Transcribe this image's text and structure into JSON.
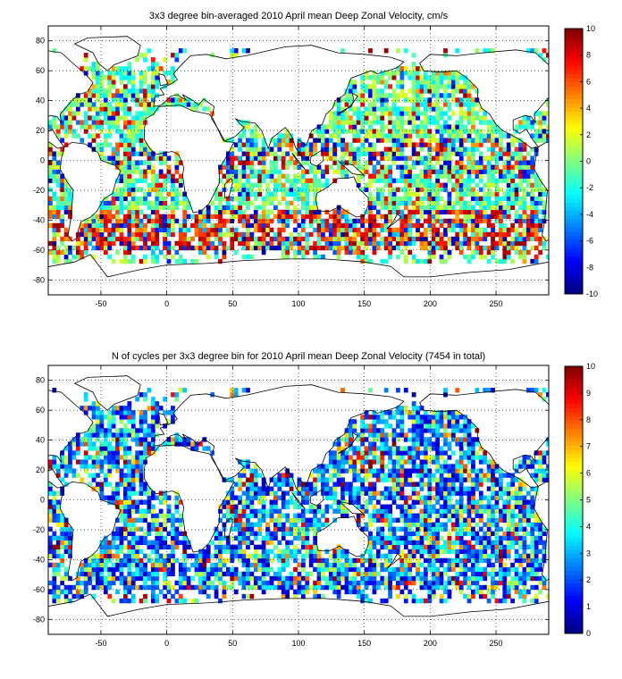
{
  "chart_data": [
    {
      "type": "heatmap",
      "title": "3x3 degree bin-averaged 2010 April mean Deep Zonal Velocity, cm/s",
      "xlim": [
        -90,
        290
      ],
      "ylim": [
        -90,
        90
      ],
      "xticks": [
        -50,
        0,
        50,
        100,
        150,
        200,
        250
      ],
      "yticks": [
        80,
        60,
        40,
        20,
        0,
        -20,
        -40,
        -60,
        -80
      ],
      "grid": true,
      "bin_size_deg": 3,
      "colorbar": {
        "min": -10,
        "max": 10,
        "ticks": [
          10,
          8,
          6,
          4,
          2,
          0,
          -2,
          -4,
          -6,
          -8,
          -10
        ],
        "colormap": "jet"
      },
      "background": "land outlines (coastline map)"
    },
    {
      "type": "heatmap",
      "title": "N of cycles per 3x3 degree bin for 2010 April mean Deep Zonal Velocity (7454 in total)",
      "xlim": [
        -90,
        290
      ],
      "ylim": [
        -90,
        90
      ],
      "xticks": [
        -50,
        0,
        50,
        100,
        150,
        200,
        250
      ],
      "yticks": [
        80,
        60,
        40,
        20,
        0,
        -20,
        -40,
        -60,
        -80
      ],
      "grid": true,
      "bin_size_deg": 3,
      "total_cycles": 7454,
      "colorbar": {
        "min": 0,
        "max": 10,
        "ticks": [
          10,
          9,
          8,
          7,
          6,
          5,
          4,
          3,
          2,
          1,
          0
        ],
        "colormap": "jet"
      },
      "background": "land outlines (coastline map)"
    }
  ]
}
